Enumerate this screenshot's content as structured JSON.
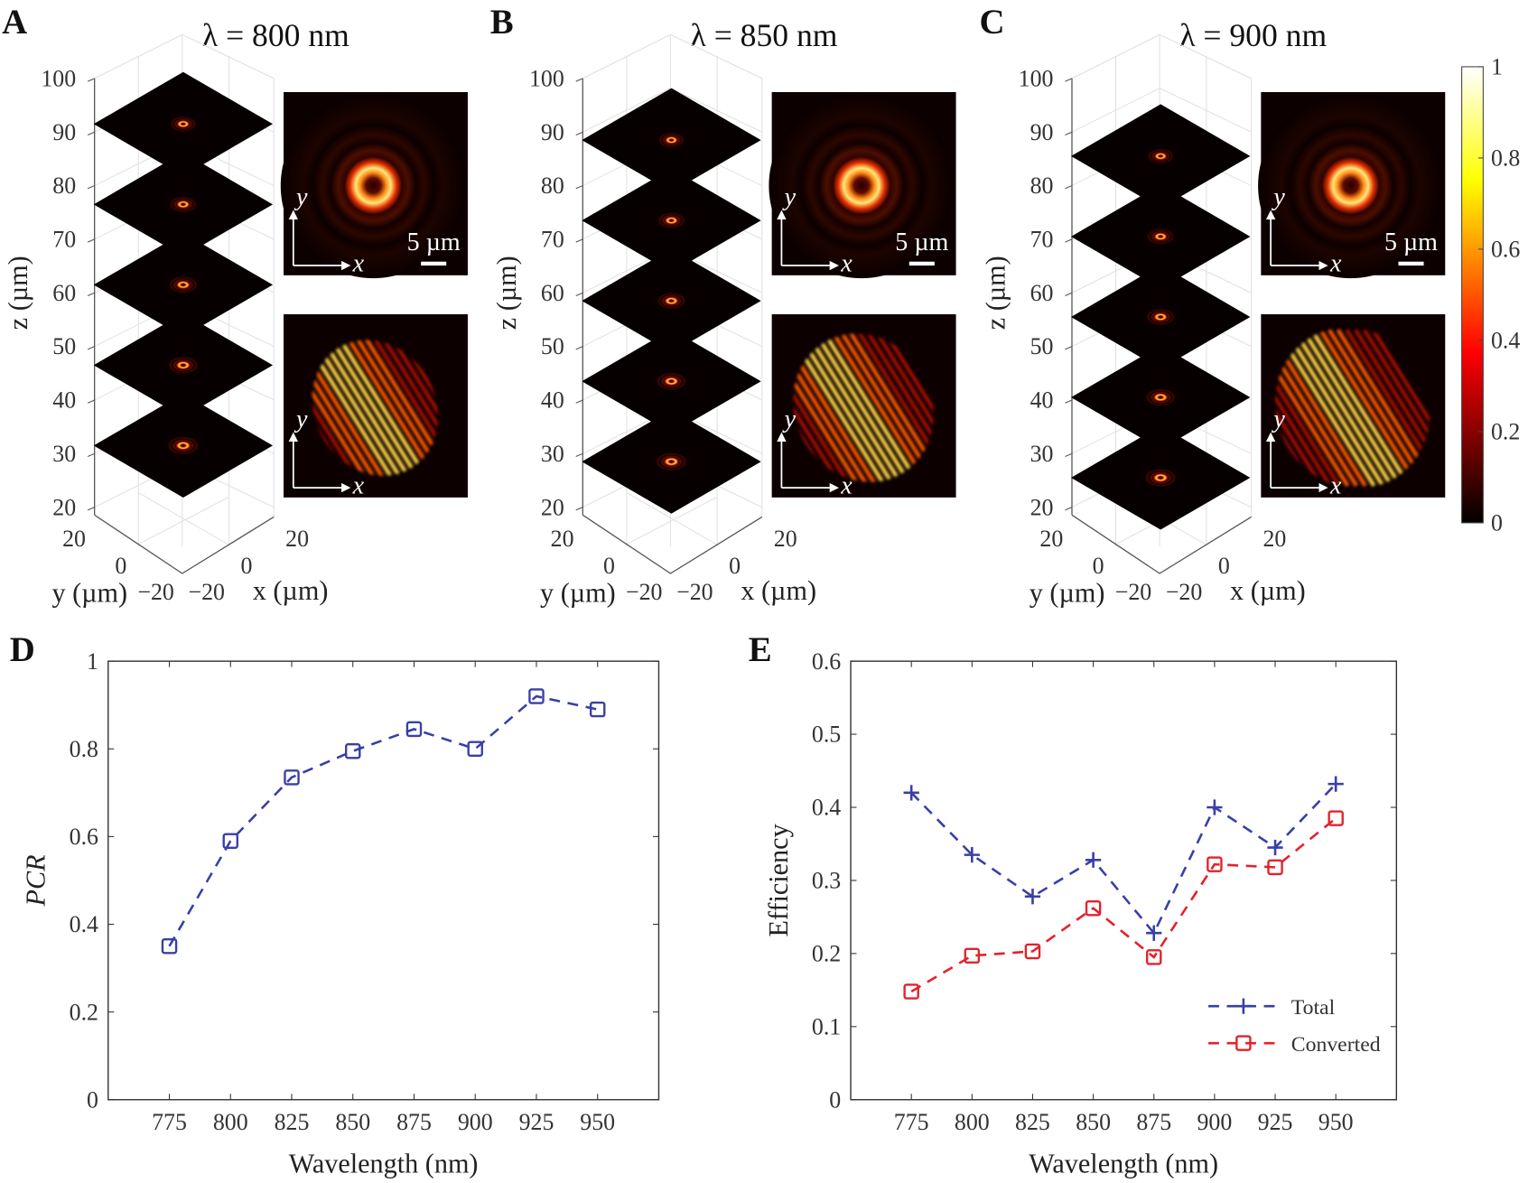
{
  "panels": [
    {
      "letter": "A",
      "title": "λ = 800 nm",
      "slice_z": [
        91.5,
        76.5,
        61.5,
        46.5,
        31.5
      ]
    },
    {
      "letter": "B",
      "title": "λ = 850 nm",
      "slice_z": [
        88.5,
        73.5,
        58.5,
        43.5,
        28.5
      ]
    },
    {
      "letter": "C",
      "title": "λ = 900 nm",
      "slice_z": [
        85.5,
        70.5,
        55.5,
        40.5,
        25.5
      ]
    }
  ],
  "stack_axes": {
    "z_ticks": [
      "100",
      "90",
      "80",
      "70",
      "60",
      "50",
      "40",
      "30",
      "20"
    ],
    "z_label": "z (µm)",
    "y_ticks": [
      "20",
      "0",
      "−20"
    ],
    "x_ticks": [
      "20",
      "0",
      "−20"
    ],
    "y_label": "y (µm)",
    "x_label": "x (µm)",
    "inset_y": "y",
    "inset_x": "x",
    "scale_bar": "5 µm"
  },
  "colorbar": {
    "ticks": [
      "1",
      "0.8",
      "0.6",
      "0.4",
      "0.2",
      "0"
    ],
    "range": [
      0,
      1
    ],
    "colormap": "hot"
  },
  "colors": {
    "total": "#3a3fa6",
    "converted": "#e3222b"
  },
  "chart_data": [
    {
      "letter": "D",
      "type": "line",
      "xlabel": "Wavelength (nm)",
      "ylabel": "PCR",
      "x": [
        775,
        800,
        825,
        850,
        875,
        900,
        925,
        950
      ],
      "xlim": [
        750,
        975
      ],
      "ylim": [
        0,
        1
      ],
      "x_ticks": [
        "775",
        "800",
        "825",
        "850",
        "875",
        "900",
        "925",
        "950"
      ],
      "y_ticks": [
        "0",
        "0.2",
        "0.4",
        "0.6",
        "0.8",
        "1"
      ],
      "grid": false,
      "series": [
        {
          "values": [
            0.35,
            0.59,
            0.735,
            0.795,
            0.845,
            0.8,
            0.92,
            0.89
          ],
          "marker": "square",
          "line": "dashed",
          "color": "#3a3fa6"
        }
      ]
    },
    {
      "letter": "E",
      "type": "line",
      "xlabel": "Wavelength (nm)",
      "ylabel": "Efficiency",
      "x": [
        775,
        800,
        825,
        850,
        875,
        900,
        925,
        950
      ],
      "xlim": [
        750,
        975
      ],
      "ylim": [
        0,
        0.6
      ],
      "x_ticks": [
        "775",
        "800",
        "825",
        "850",
        "875",
        "900",
        "925",
        "950"
      ],
      "y_ticks": [
        "0",
        "0.1",
        "0.2",
        "0.3",
        "0.4",
        "0.5",
        "0.6"
      ],
      "grid": false,
      "legend": "bottom-right",
      "series": [
        {
          "name": "Total",
          "values": [
            0.42,
            0.335,
            0.278,
            0.328,
            0.228,
            0.4,
            0.345,
            0.432
          ],
          "marker": "plus",
          "line": "dashed",
          "color": "#3a3fa6"
        },
        {
          "name": "Converted",
          "values": [
            0.148,
            0.197,
            0.203,
            0.262,
            0.195,
            0.322,
            0.318,
            0.385
          ],
          "marker": "square",
          "line": "dashed",
          "color": "#e3222b"
        }
      ]
    }
  ]
}
